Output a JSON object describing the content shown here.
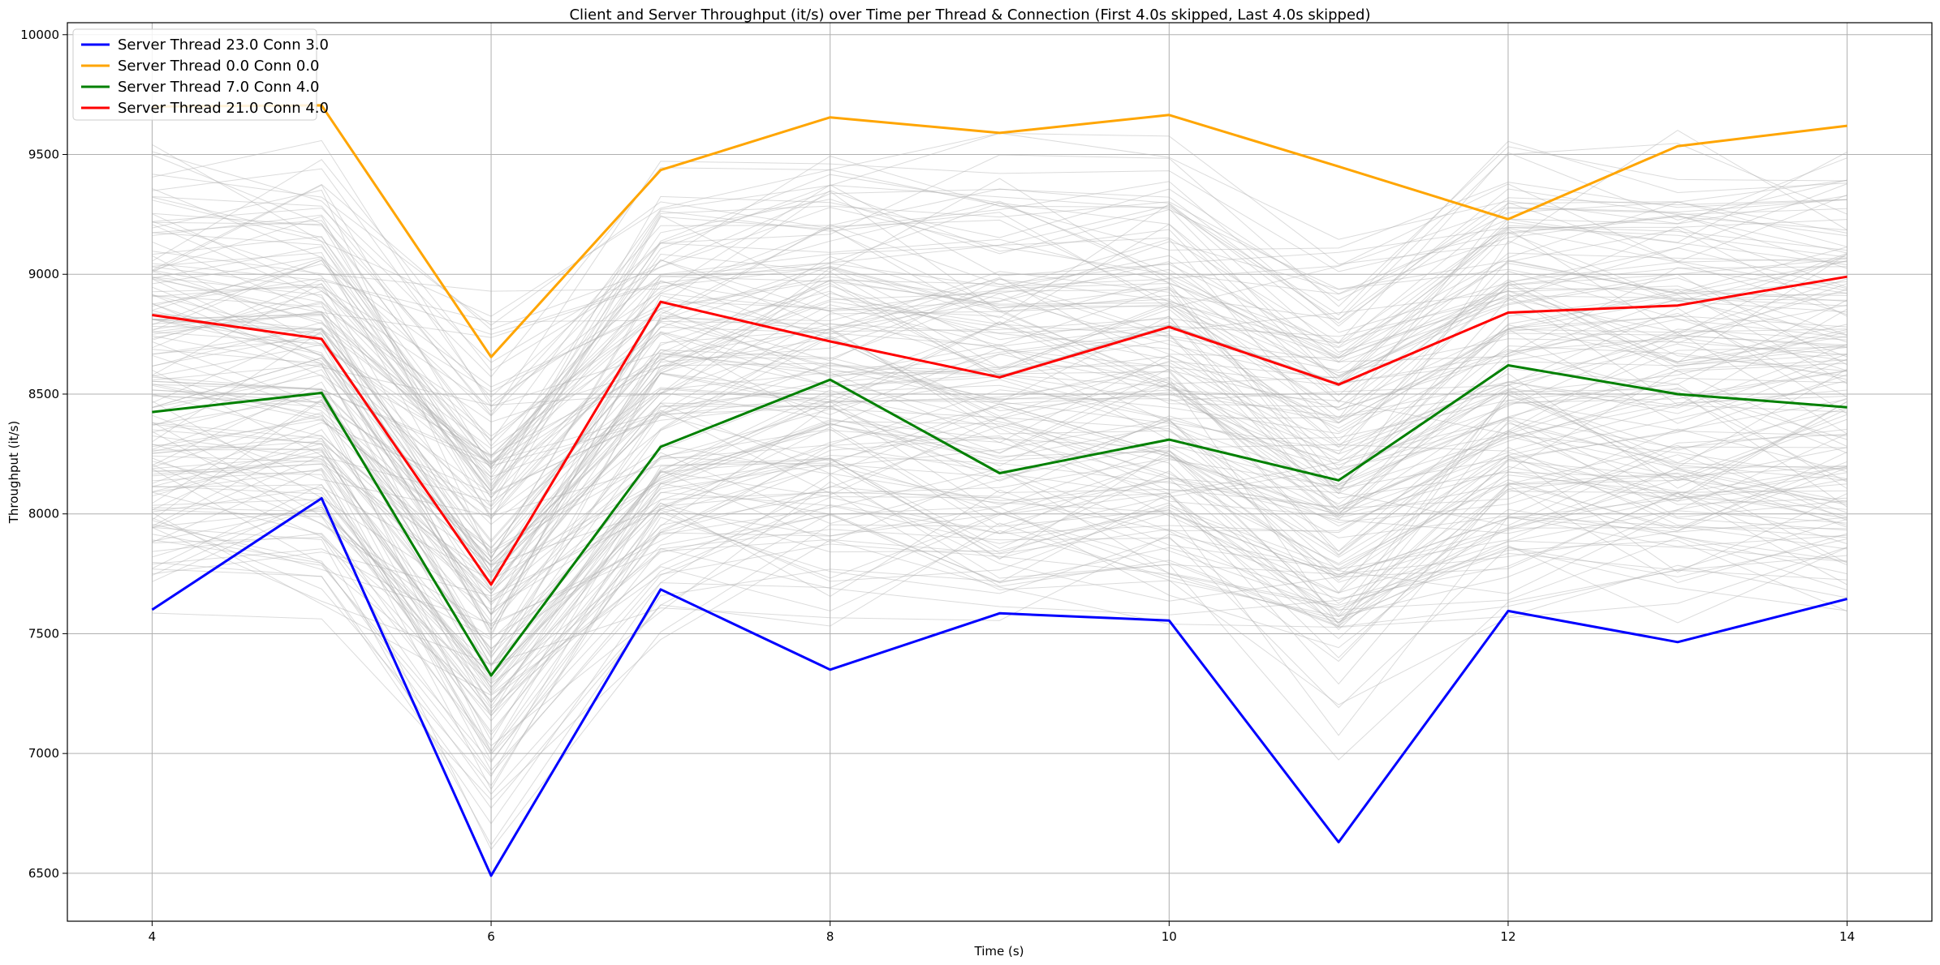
{
  "chart_data": {
    "type": "line",
    "title": "Client and Server Throughput (it/s) over Time per Thread & Connection (First 4.0s skipped, Last 4.0s skipped)",
    "xlabel": "Time (s)",
    "ylabel": "Throughput (it/s)",
    "xlim": [
      3.5,
      14.5
    ],
    "ylim": [
      6300,
      10050
    ],
    "xticks": [
      4,
      6,
      8,
      10,
      12,
      14
    ],
    "yticks": [
      6500,
      7000,
      7500,
      8000,
      8500,
      9000,
      9500,
      10000
    ],
    "grid": true,
    "legend_position": "top-left",
    "x": [
      4,
      5,
      6,
      7,
      8,
      9,
      10,
      11,
      12,
      13,
      14
    ],
    "series": [
      {
        "name": "Server Thread 23.0 Conn 3.0",
        "color": "#0000ff",
        "values": [
          7600,
          8065,
          6490,
          7685,
          7350,
          7585,
          7555,
          6630,
          7595,
          7465,
          7645
        ]
      },
      {
        "name": "Server Thread 0.0 Conn 0.0",
        "color": "#ffa500",
        "values": [
          9700,
          9705,
          8655,
          9435,
          9655,
          9590,
          9665,
          9450,
          9230,
          9535,
          9620
        ]
      },
      {
        "name": "Server Thread 7.0 Conn 4.0",
        "color": "#008000",
        "values": [
          8425,
          8505,
          7325,
          8280,
          8560,
          8170,
          8310,
          8140,
          8620,
          8500,
          8445
        ]
      },
      {
        "name": "Server Thread 21.0 Conn 4.0",
        "color": "#ff0000",
        "values": [
          8830,
          8730,
          7705,
          8885,
          8720,
          8570,
          8780,
          8540,
          8840,
          8870,
          8990
        ]
      }
    ],
    "background_series_color": "#b0b0b0"
  }
}
